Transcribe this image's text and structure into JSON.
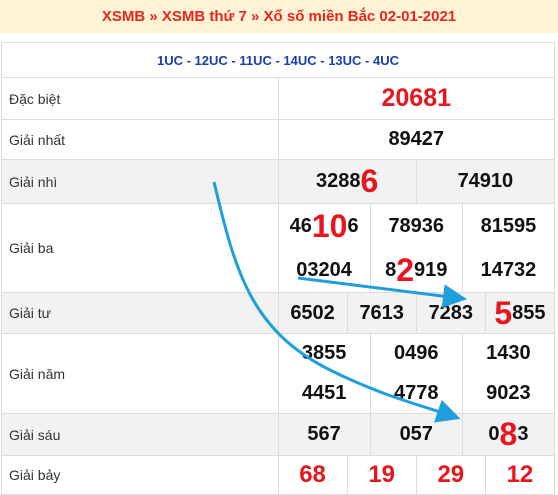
{
  "header": {
    "title": "XSMB » XSMB thứ 7 » Xổ số miền Bắc 02-01-2021"
  },
  "table": {
    "codes": "1UC - 12UC - 11UC - 14UC - 13UC - 4UC",
    "rows": [
      {
        "label": "Đặc biệt",
        "style": "special",
        "shaded": false,
        "lines": [
          [
            "20681"
          ]
        ]
      },
      {
        "label": "Giải nhất",
        "style": "normal",
        "shaded": false,
        "lines": [
          [
            "89427"
          ]
        ]
      },
      {
        "label": "Giải nhì",
        "style": "normal",
        "shaded": true,
        "lines": [
          [
            {
              "pre": "3288",
              "hi": "6"
            },
            "74910"
          ]
        ]
      },
      {
        "label": "Giải ba",
        "style": "normal",
        "shaded": false,
        "lines": [
          [
            {
              "pre": "46",
              "hi": "10",
              "post": "6"
            },
            "78936",
            "81595"
          ],
          [
            "03204",
            {
              "pre": "8",
              "hi": "2",
              "post": "919"
            },
            "14732"
          ]
        ]
      },
      {
        "label": "Giải tư",
        "style": "normal",
        "shaded": true,
        "lines": [
          [
            "6502",
            "7613",
            "7283",
            {
              "hi": "5",
              "post": "855"
            }
          ]
        ]
      },
      {
        "label": "Giải năm",
        "style": "normal",
        "shaded": false,
        "lines": [
          [
            "3855",
            "0496",
            "1430"
          ],
          [
            "4451",
            "4778",
            "9023"
          ]
        ]
      },
      {
        "label": "Giải sáu",
        "style": "normal",
        "shaded": true,
        "lines": [
          [
            "567",
            "057",
            {
              "pre": "0",
              "hi": "8",
              "post": "3"
            }
          ]
        ]
      },
      {
        "label": "Giải bảy",
        "style": "red",
        "shaded": false,
        "lines": [
          [
            "68",
            "19",
            "29",
            "12"
          ]
        ]
      }
    ]
  }
}
